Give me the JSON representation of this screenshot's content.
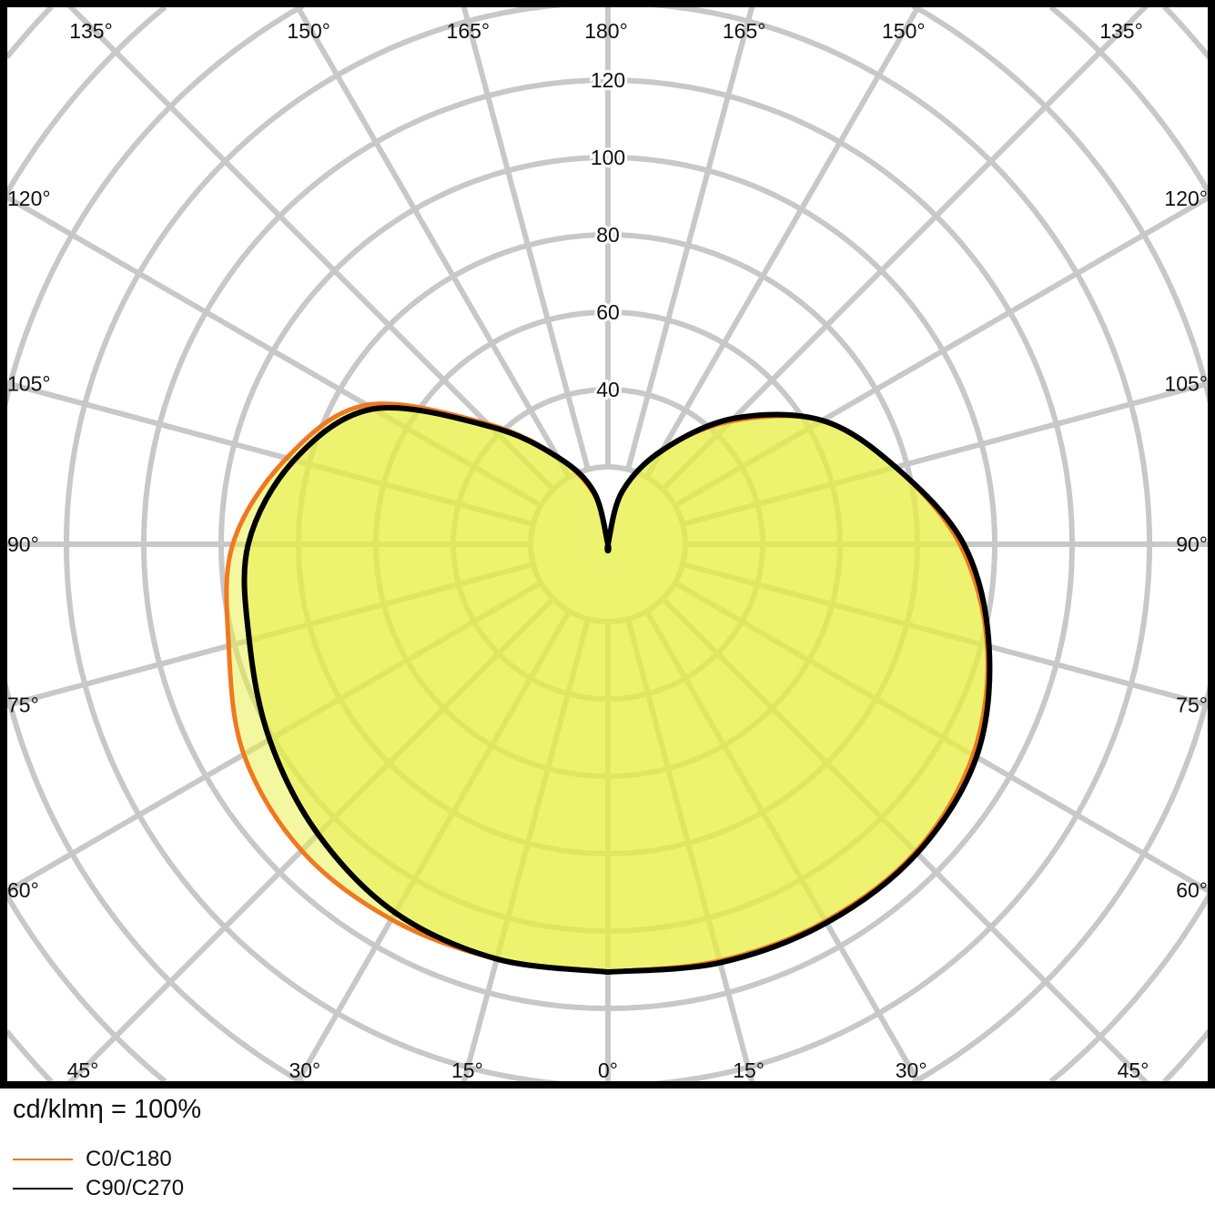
{
  "chart_data": {
    "type": "polar-line",
    "unit_label": "cd/klmη = 100%",
    "radial_ticks": [
      40,
      60,
      80,
      100,
      120
    ],
    "radial_grid_step": 20,
    "angle_grid_step": 15,
    "angle_labels": {
      "top": [
        "135°",
        "150°",
        "165°",
        "180°",
        "165°",
        "150°",
        "135°"
      ],
      "left": [
        "120°",
        "105°",
        "90°",
        "75°",
        "60°"
      ],
      "right": [
        "120°",
        "105°",
        "90°",
        "75°",
        "60°"
      ],
      "bottom": [
        "45°",
        "30°",
        "15°",
        "0°",
        "15°",
        "30°",
        "45°"
      ]
    },
    "gamma": [
      0,
      15,
      30,
      45,
      60,
      75,
      90,
      105,
      120,
      135,
      150,
      165,
      180
    ],
    "series": [
      {
        "name": "C0/C180",
        "color": "#f07820",
        "right": [
          110.6,
          111.5,
          112.5,
          112.5,
          109,
          101.5,
          91,
          77,
          64,
          45,
          28,
          14,
          0
        ],
        "left": [
          110.6,
          111,
          112,
          112,
          108.7,
          101.5,
          97,
          86,
          72,
          44,
          26,
          13,
          0
        ]
      },
      {
        "name": "C90/C270",
        "color": "#000000",
        "right": [
          110.6,
          112,
          113,
          113,
          110,
          102,
          92,
          77,
          64,
          46,
          28,
          14,
          0
        ],
        "left": [
          110.6,
          111,
          110,
          106,
          101,
          96,
          93,
          84,
          70,
          43,
          26,
          14,
          0
        ]
      }
    ],
    "fill_color": "#e8f040",
    "grid_color": "#c8c8c8"
  }
}
